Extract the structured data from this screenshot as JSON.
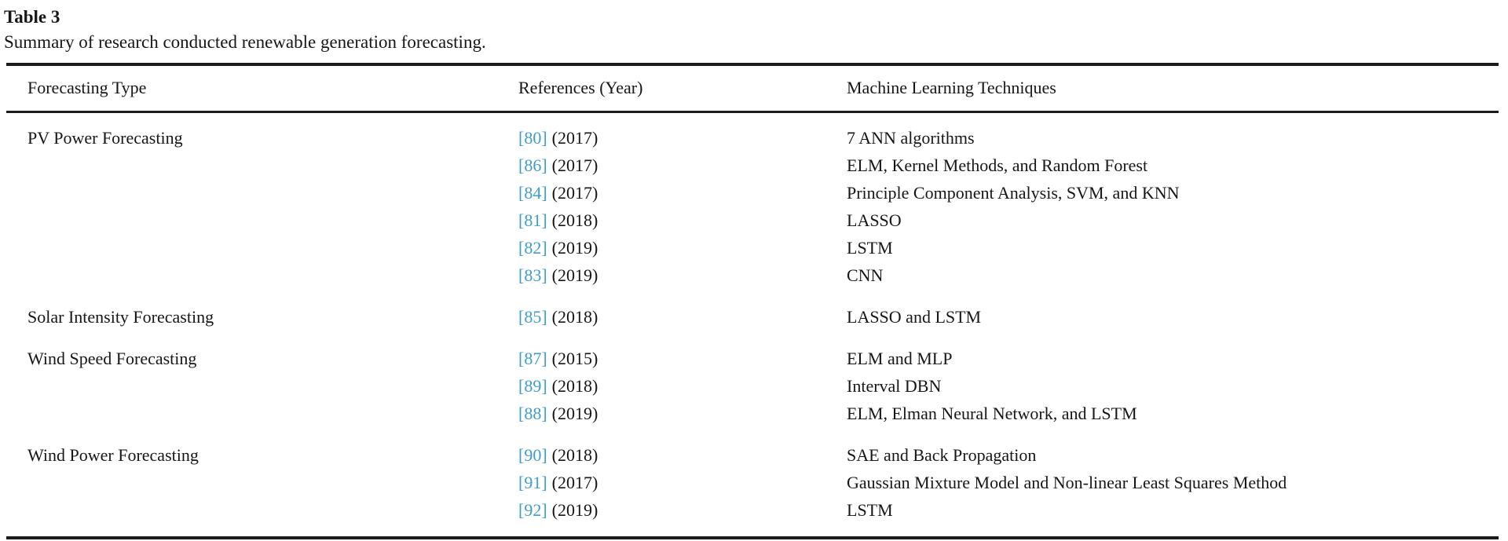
{
  "table": {
    "label": "Table 3",
    "caption": "Summary of research conducted renewable generation forecasting.",
    "columns": [
      "Forecasting Type",
      "References (Year)",
      "Machine Learning Techniques"
    ],
    "groups": [
      {
        "type": "PV Power Forecasting",
        "entries": [
          {
            "ref": "[80]",
            "year": "(2017)",
            "techniques": "7 ANN algorithms"
          },
          {
            "ref": "[86]",
            "year": "(2017)",
            "techniques": "ELM, Kernel Methods, and Random Forest"
          },
          {
            "ref": "[84]",
            "year": "(2017)",
            "techniques": "Principle Component Analysis, SVM, and KNN"
          },
          {
            "ref": "[81]",
            "year": "(2018)",
            "techniques": "LASSO"
          },
          {
            "ref": "[82]",
            "year": "(2019)",
            "techniques": "LSTM"
          },
          {
            "ref": "[83]",
            "year": "(2019)",
            "techniques": "CNN"
          }
        ]
      },
      {
        "type": "Solar Intensity Forecasting",
        "entries": [
          {
            "ref": "[85]",
            "year": "(2018)",
            "techniques": "LASSO and LSTM"
          }
        ]
      },
      {
        "type": "Wind Speed Forecasting",
        "entries": [
          {
            "ref": "[87]",
            "year": "(2015)",
            "techniques": "ELM and MLP"
          },
          {
            "ref": "[89]",
            "year": "(2018)",
            "techniques": "Interval DBN"
          },
          {
            "ref": "[88]",
            "year": "(2019)",
            "techniques": "ELM, Elman Neural Network, and LSTM"
          }
        ]
      },
      {
        "type": "Wind Power Forecasting",
        "entries": [
          {
            "ref": "[90]",
            "year": "(2018)",
            "techniques": "SAE and Back Propagation"
          },
          {
            "ref": "[91]",
            "year": "(2017)",
            "techniques": "Gaussian Mixture Model and Non-linear Least Squares Method"
          },
          {
            "ref": "[92]",
            "year": "(2019)",
            "techniques": "LSTM"
          }
        ]
      }
    ],
    "colors": {
      "reference_link": "#3f9dca",
      "text": "#161616",
      "rule": "#1b1b1b"
    }
  }
}
